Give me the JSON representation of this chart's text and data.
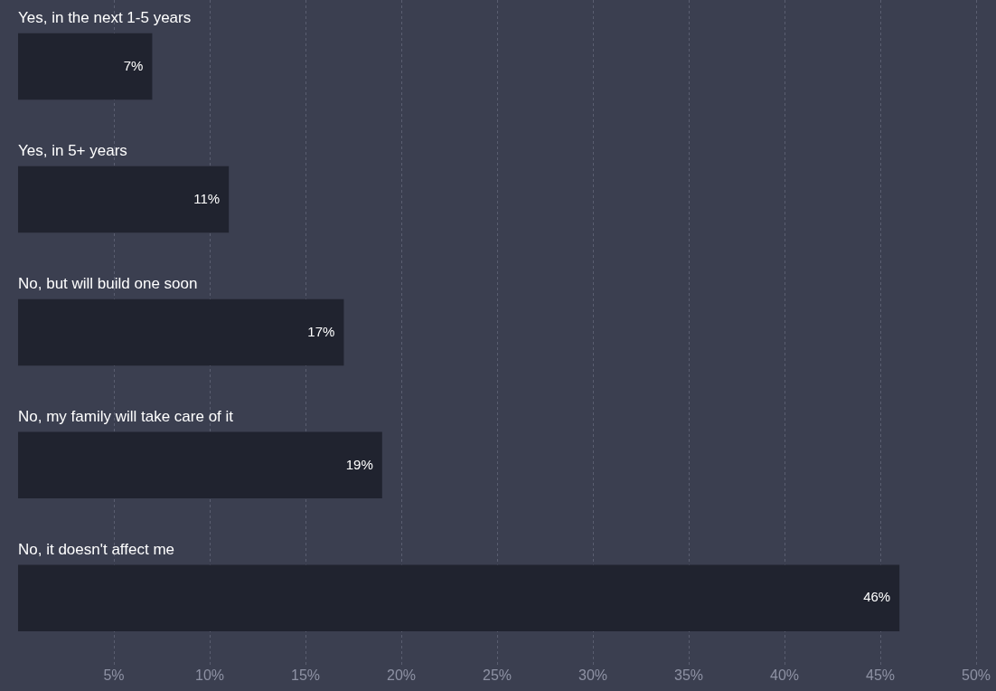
{
  "chart_data": {
    "type": "bar",
    "orientation": "horizontal",
    "categories": [
      "Yes, in the next 1-5 years",
      "Yes, in 5+ years",
      "No, but will build one soon",
      "No, my family will take care of it",
      "No, it doesn't affect me"
    ],
    "values": [
      7,
      11,
      17,
      19,
      46
    ],
    "value_labels": [
      "7%",
      "11%",
      "17%",
      "19%",
      "46%"
    ],
    "color": "#20232f",
    "xlim": [
      0,
      50
    ],
    "xticks": [
      {
        "value": 5,
        "label": "5%"
      },
      {
        "value": 10,
        "label": "10%"
      },
      {
        "value": 15,
        "label": "15%"
      },
      {
        "value": 20,
        "label": "20%"
      },
      {
        "value": 25,
        "label": "25%"
      },
      {
        "value": 30,
        "label": "30%"
      },
      {
        "value": 35,
        "label": "35%"
      },
      {
        "value": 40,
        "label": "40%"
      },
      {
        "value": 45,
        "label": "45%"
      },
      {
        "value": 50,
        "label": "50%"
      }
    ],
    "grid": "x",
    "legend": false
  }
}
